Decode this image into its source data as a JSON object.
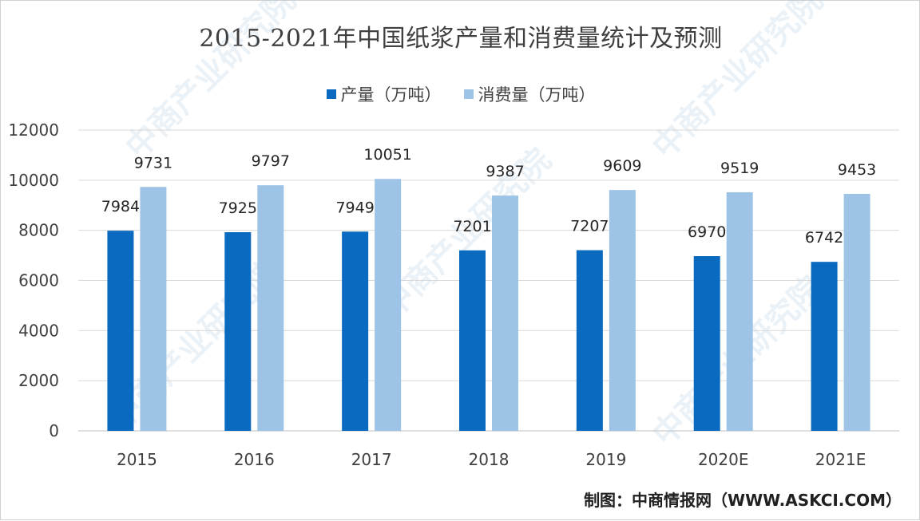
{
  "chart_data": {
    "type": "bar",
    "title": "2015-2021年中国纸浆产量和消费量统计及预测",
    "categories": [
      "2015",
      "2016",
      "2017",
      "2018",
      "2019",
      "2020E",
      "2021E"
    ],
    "series": [
      {
        "name": "产量（万吨）",
        "color": "#0a6abf",
        "values": [
          7984,
          7925,
          7949,
          7201,
          7207,
          6970,
          6742
        ]
      },
      {
        "name": "消费量（万吨）",
        "color": "#9dc3e6",
        "values": [
          9731,
          9797,
          10051,
          9387,
          9609,
          9519,
          9453
        ]
      }
    ],
    "ylim": [
      0,
      12000
    ],
    "yticks": [
      0,
      2000,
      4000,
      6000,
      8000,
      10000,
      12000
    ],
    "grid": true,
    "legend_position": "top-center"
  },
  "source": "制图：中商情报网（WWW.ASKCI.COM）",
  "watermark": "中商产业研究院"
}
